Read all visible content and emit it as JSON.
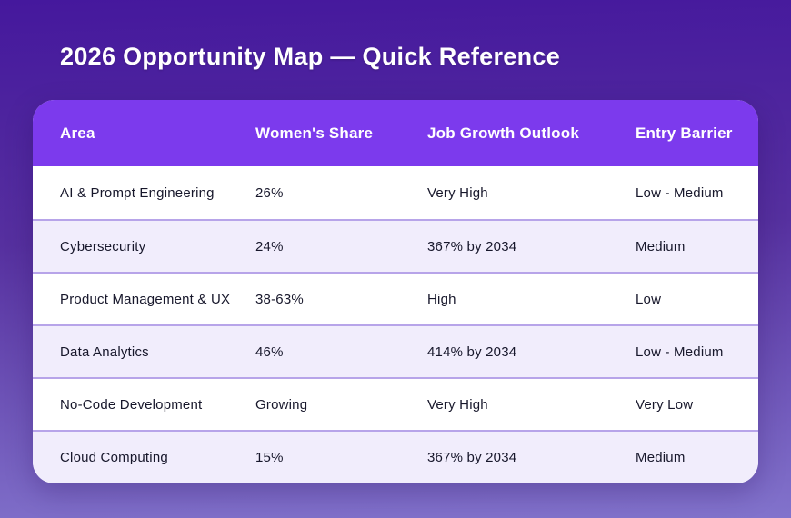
{
  "page": {
    "title": "2026 Opportunity Map — Quick Reference"
  },
  "table": {
    "columns": [
      {
        "key": "area",
        "label": "Area"
      },
      {
        "key": "share",
        "label": "Women's Share"
      },
      {
        "key": "outlook",
        "label": "Job Growth Outlook"
      },
      {
        "key": "barrier",
        "label": "Entry Barrier"
      }
    ],
    "rows": [
      {
        "area": "AI & Prompt Engineering",
        "share": "26%",
        "outlook": "Very High",
        "barrier": "Low - Medium"
      },
      {
        "area": "Cybersecurity",
        "share": "24%",
        "outlook": "367% by 2034",
        "barrier": "Medium"
      },
      {
        "area": "Product Management & UX",
        "share": "38-63%",
        "outlook": "High",
        "barrier": "Low"
      },
      {
        "area": "Data Analytics",
        "share": "46%",
        "outlook": "414% by 2034",
        "barrier": "Low - Medium"
      },
      {
        "area": "No-Code Development",
        "share": "Growing",
        "outlook": "Very High",
        "barrier": "Very Low"
      },
      {
        "area": "Cloud Computing",
        "share": "15%",
        "outlook": "367% by 2034",
        "barrier": "Medium"
      }
    ]
  },
  "colors": {
    "background_top": "#45189d",
    "background_bottom": "#8273cc",
    "header_bg": "#7c3aed",
    "row_bg": "#ffffff",
    "row_alt_bg": "#f1edfc",
    "divider": "#b7a4e9",
    "title_text": "#ffffff",
    "body_text": "#17172b"
  }
}
